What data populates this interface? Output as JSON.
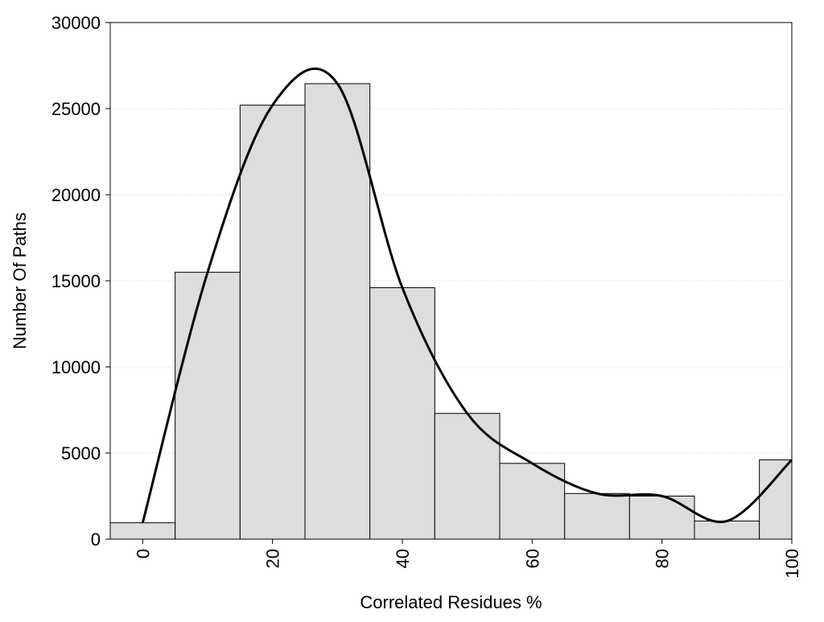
{
  "chart_data": {
    "type": "bar",
    "xlabel": "Correlated Residues %",
    "ylabel": "Number Of Paths",
    "xlim": [
      -5,
      100
    ],
    "ylim": [
      0,
      30000
    ],
    "x_ticks": [
      "0",
      "20",
      "40",
      "60",
      "80",
      "100"
    ],
    "y_ticks": [
      "0",
      "5000",
      "10000",
      "15000",
      "20000",
      "25000",
      "30000"
    ],
    "grid": "horizontal dotted",
    "bin_width": 10,
    "categories": [
      0,
      10,
      20,
      30,
      40,
      50,
      60,
      70,
      80,
      90,
      100
    ],
    "values": [
      950,
      15500,
      25200,
      26450,
      14600,
      7300,
      4400,
      2650,
      2500,
      1050,
      4600
    ],
    "curve": {
      "x": [
        0,
        10,
        20,
        30,
        40,
        50,
        60,
        70,
        80,
        90,
        100
      ],
      "y": [
        950,
        15500,
        25200,
        26450,
        14600,
        7300,
        4400,
        2650,
        2500,
        1050,
        4600
      ]
    },
    "colors": {
      "bar_fill": "#dddddd",
      "bar_stroke": "#000000",
      "curve": "#000000",
      "grid": "#cccccc"
    }
  }
}
